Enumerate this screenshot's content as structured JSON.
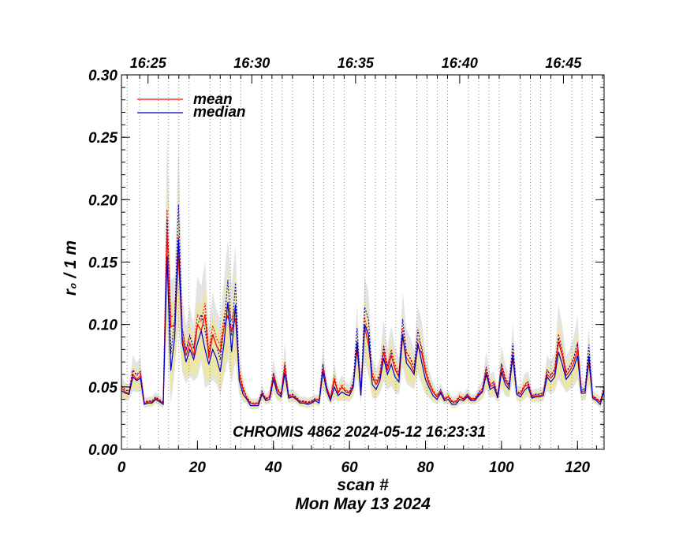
{
  "chart_data": {
    "type": "line",
    "title": "",
    "xlabel": "scan #",
    "ylabel": "r₀ / 1 m",
    "date_label": "Mon May 13 2024",
    "annotation": "CHROMIS 4862 2024‑05‑12 16:23:31",
    "xlim": [
      0,
      127
    ],
    "ylim": [
      0.0,
      0.3
    ],
    "x_ticks": [
      0,
      20,
      40,
      60,
      80,
      100,
      120
    ],
    "x_tick_labels": [
      "0",
      "20",
      "40",
      "60",
      "80",
      "100",
      "120"
    ],
    "y_ticks": [
      0.0,
      0.05,
      0.1,
      0.15,
      0.2,
      0.25,
      0.3
    ],
    "y_tick_labels": [
      "0.00",
      "0.05",
      "0.10",
      "0.15",
      "0.20",
      "0.25",
      "0.30"
    ],
    "top_axis": {
      "label_scans": [
        7.0,
        34.3,
        61.6,
        89.0,
        116.3
      ],
      "labels": [
        "16:25",
        "16:30",
        "16:35",
        "16:40",
        "16:45"
      ]
    },
    "time_gridlines_scans": [
      1.5,
      4.8,
      9.7,
      12.4,
      15.1,
      17.8,
      23.3,
      26.0,
      28.7,
      31.4,
      36.9,
      39.6,
      42.3,
      45.0,
      50.5,
      53.2,
      55.9,
      58.6,
      64.1,
      66.8,
      69.5,
      72.2,
      77.7,
      80.4,
      83.1,
      85.8,
      91.3,
      94.0,
      96.7,
      99.4,
      104.9,
      107.6,
      110.3,
      113.0,
      118.5,
      121.2,
      123.9,
      126.6
    ],
    "grid": "vertical dotted at minute marks",
    "legend": {
      "placement": "top-left",
      "entries": [
        "mean",
        "median"
      ]
    },
    "colors": {
      "mean": "#ff0000",
      "median": "#0000cc",
      "band_outer": "#e3e3e3",
      "band_inner": "#ece6a9"
    },
    "x": [
      0,
      1,
      2,
      3,
      4,
      5,
      6,
      7,
      8,
      9,
      10,
      11,
      12,
      13,
      14,
      15,
      16,
      17,
      18,
      19,
      20,
      21,
      22,
      23,
      24,
      25,
      26,
      27,
      28,
      29,
      30,
      31,
      32,
      33,
      34,
      35,
      36,
      37,
      38,
      39,
      40,
      41,
      42,
      43,
      44,
      45,
      46,
      47,
      48,
      49,
      50,
      51,
      52,
      53,
      54,
      55,
      56,
      57,
      58,
      59,
      60,
      61,
      62,
      63,
      64,
      65,
      66,
      67,
      68,
      69,
      70,
      71,
      72,
      73,
      74,
      75,
      76,
      77,
      78,
      79,
      80,
      81,
      82,
      83,
      84,
      85,
      86,
      87,
      88,
      89,
      90,
      91,
      92,
      93,
      94,
      95,
      96,
      97,
      98,
      99,
      100,
      101,
      102,
      103,
      104,
      105,
      106,
      107,
      108,
      109,
      110,
      111,
      112,
      113,
      114,
      115,
      116,
      117,
      118,
      119,
      120,
      121,
      122,
      123,
      124,
      125,
      126,
      127
    ],
    "series": [
      {
        "name": "mean",
        "values": [
          0.049,
          0.046,
          0.045,
          0.06,
          0.056,
          0.059,
          0.037,
          0.038,
          0.038,
          0.041,
          0.039,
          0.037,
          0.175,
          0.098,
          0.1,
          0.155,
          0.09,
          0.075,
          0.085,
          0.075,
          0.1,
          0.095,
          0.108,
          0.073,
          0.092,
          0.083,
          0.078,
          0.098,
          0.107,
          0.095,
          0.105,
          0.06,
          0.048,
          0.041,
          0.037,
          0.036,
          0.037,
          0.045,
          0.04,
          0.042,
          0.058,
          0.048,
          0.043,
          0.066,
          0.042,
          0.043,
          0.041,
          0.038,
          0.038,
          0.037,
          0.038,
          0.04,
          0.039,
          0.064,
          0.048,
          0.041,
          0.056,
          0.045,
          0.05,
          0.046,
          0.045,
          0.052,
          0.08,
          0.046,
          0.098,
          0.084,
          0.059,
          0.052,
          0.058,
          0.078,
          0.063,
          0.075,
          0.064,
          0.058,
          0.09,
          0.073,
          0.069,
          0.062,
          0.082,
          0.077,
          0.062,
          0.052,
          0.046,
          0.042,
          0.046,
          0.04,
          0.042,
          0.038,
          0.038,
          0.042,
          0.04,
          0.043,
          0.04,
          0.04,
          0.044,
          0.047,
          0.062,
          0.05,
          0.052,
          0.042,
          0.065,
          0.055,
          0.05,
          0.073,
          0.045,
          0.044,
          0.05,
          0.052,
          0.042,
          0.043,
          0.043,
          0.044,
          0.06,
          0.057,
          0.061,
          0.086,
          0.075,
          0.059,
          0.063,
          0.069,
          0.08,
          0.046,
          0.047,
          0.069,
          0.042,
          0.04,
          0.038,
          0.048
        ]
      },
      {
        "name": "median",
        "values": [
          0.047,
          0.045,
          0.044,
          0.058,
          0.055,
          0.057,
          0.036,
          0.037,
          0.037,
          0.04,
          0.038,
          0.036,
          0.155,
          0.063,
          0.09,
          0.168,
          0.085,
          0.07,
          0.08,
          0.072,
          0.085,
          0.095,
          0.08,
          0.068,
          0.08,
          0.073,
          0.062,
          0.085,
          0.118,
          0.078,
          0.116,
          0.055,
          0.044,
          0.04,
          0.035,
          0.035,
          0.035,
          0.044,
          0.039,
          0.04,
          0.056,
          0.045,
          0.042,
          0.061,
          0.041,
          0.042,
          0.04,
          0.037,
          0.037,
          0.036,
          0.037,
          0.039,
          0.037,
          0.062,
          0.047,
          0.039,
          0.05,
          0.043,
          0.046,
          0.044,
          0.043,
          0.05,
          0.086,
          0.043,
          0.1,
          0.092,
          0.052,
          0.048,
          0.055,
          0.073,
          0.06,
          0.068,
          0.058,
          0.054,
          0.092,
          0.069,
          0.065,
          0.06,
          0.085,
          0.07,
          0.056,
          0.049,
          0.043,
          0.04,
          0.045,
          0.039,
          0.04,
          0.036,
          0.036,
          0.04,
          0.039,
          0.042,
          0.039,
          0.039,
          0.043,
          0.046,
          0.06,
          0.048,
          0.05,
          0.041,
          0.062,
          0.052,
          0.048,
          0.076,
          0.044,
          0.042,
          0.047,
          0.05,
          0.041,
          0.042,
          0.042,
          0.043,
          0.058,
          0.054,
          0.058,
          0.078,
          0.068,
          0.056,
          0.06,
          0.065,
          0.075,
          0.045,
          0.045,
          0.075,
          0.041,
          0.039,
          0.036,
          0.047
        ]
      }
    ]
  }
}
